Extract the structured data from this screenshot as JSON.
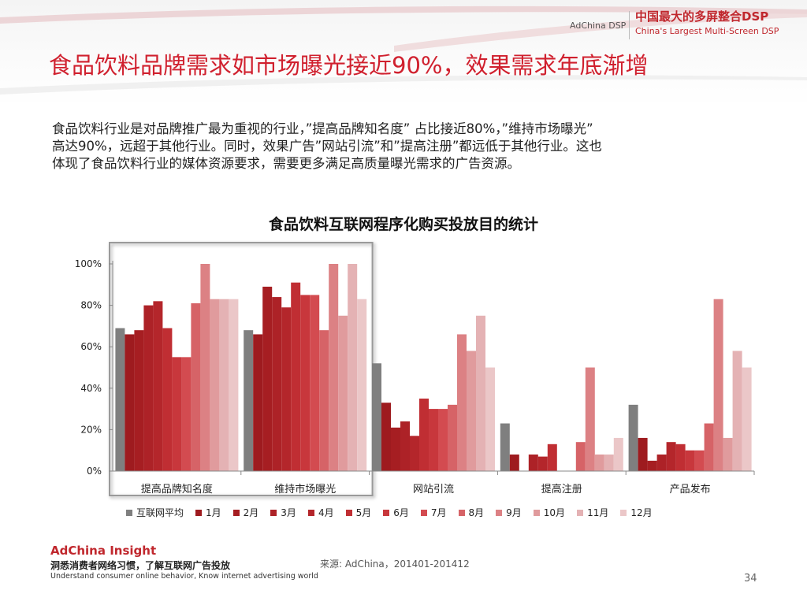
{
  "header": {
    "brand_small": "AdChina DSP",
    "brand_cn": "中国最大的多屏整合DSP",
    "brand_en": "China's Largest Multi-Screen DSP"
  },
  "title": "食品饮料品牌需求如市场曝光接近90%，效果需求年底渐增",
  "body_lines": [
    "食品饮料行业是对品牌推广最为重视的行业，”提高品牌知名度” 占比接近80%，”维持市场曝光”",
    "高达90%，远超于其他行业。同时，效果广告”网站引流”和”提高注册”都远低于其他行业。这也",
    "体现了食品饮料行业的媒体资源要求，需要更多满足高质量曝光需求的广告资源。"
  ],
  "chart_data": {
    "type": "bar",
    "title": "食品饮料互联网程序化购买投放目的统计",
    "categories": [
      "提高品牌知名度",
      "维持市场曝光",
      "网站引流",
      "提高注册",
      "产品发布"
    ],
    "y_tick_labels": [
      "0%",
      "20%",
      "40%",
      "60%",
      "80%",
      "100%"
    ],
    "ylim": [
      0,
      100
    ],
    "series": [
      {
        "name": "互联网平均",
        "color": "#7f7f7f",
        "values": [
          69,
          68,
          52,
          23,
          32
        ]
      },
      {
        "name": "1月",
        "color": "#9e1b1f",
        "values": [
          66,
          66,
          33,
          8,
          16
        ]
      },
      {
        "name": "2月",
        "color": "#a61e22",
        "values": [
          68,
          89,
          21,
          0,
          5
        ]
      },
      {
        "name": "3月",
        "color": "#ad2227",
        "values": [
          80,
          84,
          24,
          8,
          8
        ]
      },
      {
        "name": "4月",
        "color": "#b4262b",
        "values": [
          82,
          79,
          17,
          7,
          14
        ]
      },
      {
        "name": "5月",
        "color": "#c02e33",
        "values": [
          69,
          91,
          35,
          13,
          13
        ]
      },
      {
        "name": "6月",
        "color": "#c8373c",
        "values": [
          55,
          85,
          30,
          0,
          10
        ]
      },
      {
        "name": "7月",
        "color": "#d34b50",
        "values": [
          55,
          85,
          30,
          0,
          10
        ]
      },
      {
        "name": "8月",
        "color": "#d66367",
        "values": [
          81,
          68,
          32,
          14,
          23
        ]
      },
      {
        "name": "9月",
        "color": "#dc8184",
        "values": [
          100,
          100,
          66,
          50,
          83
        ]
      },
      {
        "name": "10月",
        "color": "#e09b9d",
        "values": [
          83,
          75,
          58,
          8,
          16
        ]
      },
      {
        "name": "11月",
        "color": "#e4b2b4",
        "values": [
          83,
          100,
          75,
          8,
          58
        ]
      },
      {
        "name": "12月",
        "color": "#ebc7c8",
        "values": [
          83,
          83,
          50,
          16,
          50
        ]
      }
    ],
    "highlighted_categories": [
      "提高品牌知名度",
      "维持市场曝光"
    ],
    "legend_position": "bottom",
    "grid": false
  },
  "footer": {
    "logo": "AdChina Insight",
    "tagline_cn": "洞悉消费者网络习惯，了解互联网广告投放",
    "tagline_en": "Understand consumer online behavior, Know internet advertising world",
    "source": "来源: AdChina，201401-201412",
    "page_number": "34"
  }
}
